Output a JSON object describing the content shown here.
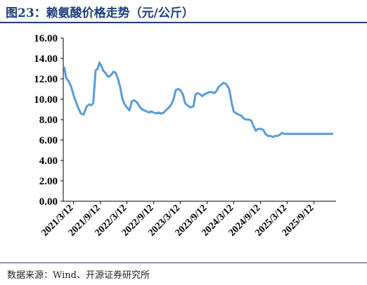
{
  "title": "图23：赖氨酸价格走势（元/公斤）",
  "source": "数据来源：Wind、开源证券研究所",
  "colors": {
    "title": "#1f3f7a",
    "line": "#5b9bd5",
    "axis": "#000000"
  },
  "chart_data": {
    "type": "line",
    "title": "图23：赖氨酸价格走势（元/公斤）",
    "xlabel": "",
    "ylabel": "",
    "ylim": [
      0,
      16
    ],
    "yticks": [
      "0.00",
      "2.00",
      "4.00",
      "6.00",
      "8.00",
      "10.00",
      "12.00",
      "14.00",
      "16.00"
    ],
    "xticks": [
      "2021/3/12",
      "2021/9/12",
      "2022/3/12",
      "2022/9/12",
      "2023/3/12",
      "2023/9/12",
      "2024/3/12",
      "2024/9/12",
      "2025/3/12",
      "2025/9/12"
    ],
    "grid": false,
    "legend": "none",
    "series": [
      {
        "x": [
          "2021/1/8",
          "2021/1/20",
          "2021/2/5",
          "2021/2/25",
          "2021/3/12",
          "2021/3/30",
          "2021/4/15",
          "2021/5/1",
          "2021/5/20",
          "2021/6/10",
          "2021/6/28",
          "2021/7/10",
          "2021/7/25",
          "2021/8/10",
          "2021/8/25",
          "2021/9/5",
          "2021/9/20",
          "2021/10/1",
          "2021/10/15",
          "2021/10/28",
          "2021/11/10",
          "2021/11/25",
          "2021/12/10",
          "2021/12/25",
          "2022/1/10",
          "2022/1/25",
          "2022/2/10",
          "2022/2/25",
          "2022/3/12",
          "2022/3/30",
          "2022/4/15",
          "2022/5/1",
          "2022/5/20",
          "2022/6/10",
          "2022/6/25",
          "2022/7/10",
          "2022/7/25",
          "2022/8/10",
          "2022/8/25",
          "2022/9/12",
          "2022/9/30",
          "2022/10/15",
          "2022/11/1",
          "2022/11/20",
          "2022/12/10",
          "2022/12/25",
          "2023/1/10",
          "2023/1/25",
          "2023/2/10",
          "2023/2/28",
          "2023/3/12",
          "2023/3/30",
          "2023/4/15",
          "2023/5/1",
          "2023/5/20",
          "2023/6/10",
          "2023/6/25",
          "2023/7/10",
          "2023/7/25",
          "2023/8/10",
          "2023/8/25",
          "2023/9/12",
          "2023/9/30",
          "2023/10/15",
          "2023/11/1",
          "2023/11/15",
          "2023/11/30",
          "2023/12/15",
          "2024/1/1",
          "2024/1/20",
          "2024/2/10",
          "2024/2/28",
          "2024/3/12",
          "2024/3/30",
          "2024/4/15",
          "2024/5/1",
          "2024/5/20",
          "2024/6/10",
          "2024/6/25",
          "2024/7/10",
          "2024/7/25",
          "2024/8/10",
          "2024/8/25",
          "2024/9/12",
          "2024/9/30",
          "2024/10/15",
          "2024/11/1",
          "2024/11/20",
          "2024/12/5",
          "2024/12/20",
          "2025/1/5",
          "2025/1/20",
          "2025/2/5",
          "2025/2/20",
          "2025/3/12",
          "2025/3/30",
          "2025/4/15",
          "2025/5/1",
          "2025/5/20",
          "2025/6/10",
          "2025/6/25",
          "2025/7/10",
          "2025/7/25",
          "2025/8/10",
          "2025/8/25",
          "2025/9/12",
          "2025/9/30",
          "2025/10/15",
          "2025/11/1",
          "2025/11/20",
          "2025/12/5",
          "2025/12/20",
          "2026/1/5",
          "2026/1/15"
        ],
        "values": [
          13.1,
          12.1,
          11.8,
          11.2,
          10.4,
          9.7,
          9.1,
          8.6,
          8.5,
          9.3,
          9.5,
          9.4,
          9.6,
          12.8,
          13.0,
          13.6,
          13.2,
          12.8,
          12.6,
          12.3,
          12.2,
          12.4,
          12.7,
          12.6,
          12.0,
          11.2,
          10.0,
          9.5,
          9.2,
          8.9,
          9.8,
          9.9,
          9.7,
          9.2,
          9.0,
          8.9,
          8.8,
          8.7,
          8.8,
          8.7,
          8.6,
          8.7,
          8.6,
          8.7,
          9.0,
          9.2,
          9.5,
          10.0,
          10.9,
          11.0,
          10.9,
          10.5,
          9.6,
          9.4,
          9.2,
          9.3,
          10.5,
          10.6,
          10.5,
          10.3,
          10.5,
          10.6,
          10.7,
          10.7,
          10.6,
          10.8,
          11.2,
          11.4,
          11.6,
          11.5,
          11.0,
          9.6,
          8.8,
          8.6,
          8.5,
          8.4,
          8.1,
          8.0,
          8.0,
          7.9,
          7.4,
          6.9,
          7.1,
          7.1,
          7.0,
          6.6,
          6.4,
          6.4,
          6.3,
          6.4,
          6.4,
          6.5,
          6.7,
          6.6,
          6.6,
          6.6,
          6.6,
          6.6,
          6.6,
          6.6,
          6.6,
          6.6,
          6.6,
          6.6,
          6.6,
          6.6,
          6.6,
          6.6,
          6.6,
          6.6,
          6.6,
          6.6,
          6.6,
          6.6
        ]
      }
    ]
  }
}
